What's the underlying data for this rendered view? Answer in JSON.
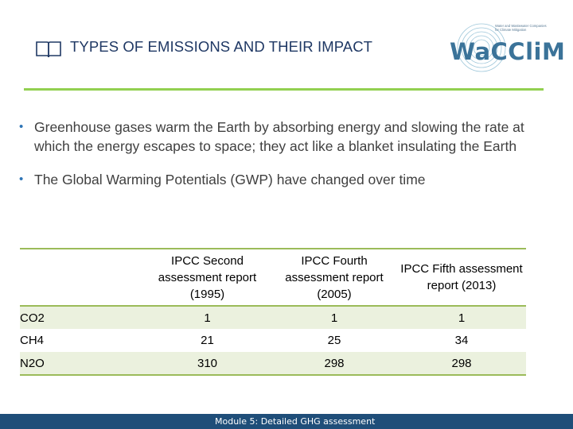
{
  "header": {
    "title": "TYPES OF EMISSIONS AND THEIR IMPACT",
    "logo_text": "WaCCliM",
    "logo_tagline": "Water and Wastewater Companies for Climate Mitigation",
    "accent_color": "#92d050",
    "title_color": "#1f3864"
  },
  "bullets": [
    "Greenhouse gases warm the Earth by absorbing energy and slowing the rate at which the energy escapes to space; they act like a blanket insulating the Earth",
    "The Global Warming Potentials (GWP) have changed over time"
  ],
  "table": {
    "columns": [
      "",
      "IPCC Second assessment report (1995)",
      "IPCC Fourth assessment report (2005)",
      "IPCC Fifth assessment report (2013)"
    ],
    "rows": [
      {
        "gas": "CO2",
        "values": [
          "1",
          "1",
          "1"
        ]
      },
      {
        "gas": "CH4",
        "values": [
          "21",
          "25",
          "34"
        ]
      },
      {
        "gas": "N2O",
        "values": [
          "310",
          "298",
          "298"
        ]
      }
    ],
    "band_color": "#ebf1de",
    "rule_color": "#9bbb59"
  },
  "footer": {
    "label": "Module 5: Detailed GHG assessment",
    "bar_color": "#1f4e79"
  }
}
